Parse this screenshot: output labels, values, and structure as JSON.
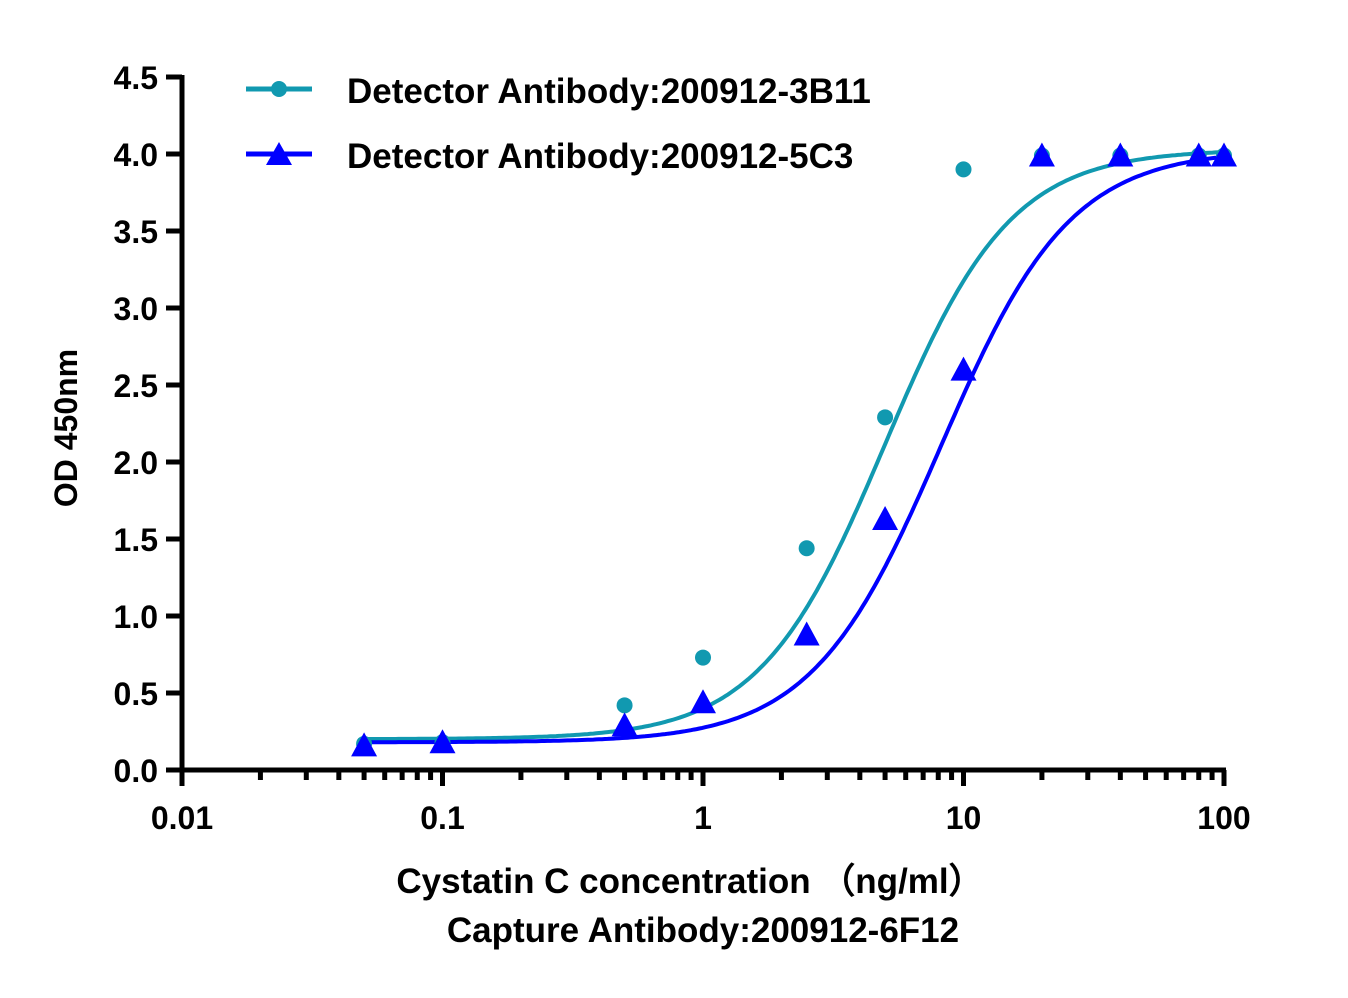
{
  "chart_data": {
    "type": "scatter",
    "x_scale": "log",
    "xlim": [
      0.01,
      100
    ],
    "ylim": [
      0,
      4.5
    ],
    "x_ticks": [
      "0.01",
      "0.1",
      "1",
      "10",
      "100"
    ],
    "y_ticks": [
      "0.0",
      "0.5",
      "1.0",
      "1.5",
      "2.0",
      "2.5",
      "3.0",
      "3.5",
      "4.0",
      "4.5"
    ],
    "xlabel": "Cystatin C concentration （ng/ml）",
    "xlabel2": "Capture Antibody:200912-6F12",
    "ylabel": "OD 450nm",
    "grid": false,
    "legend_position": "top-left",
    "series": [
      {
        "name": "Detector Antibody:200912-3B11",
        "marker": "circle",
        "color": "#1199b0",
        "x": [
          0.05,
          0.1,
          0.5,
          1,
          2.5,
          5,
          10,
          20,
          40,
          80,
          100
        ],
        "y": [
          0.17,
          0.18,
          0.42,
          0.73,
          1.44,
          2.29,
          3.9,
          3.99,
          3.99,
          3.99,
          3.99
        ],
        "fit": {
          "bottom": 0.2,
          "top": 4.03,
          "ec50": 5.0,
          "hill": 1.8
        }
      },
      {
        "name": "Detector Antibody:200912-5C3",
        "marker": "triangle",
        "color": "#0000ff",
        "x": [
          0.05,
          0.1,
          0.5,
          1,
          2.5,
          5,
          10,
          20,
          40,
          80,
          100
        ],
        "y": [
          0.16,
          0.18,
          0.29,
          0.44,
          0.88,
          1.63,
          2.6,
          3.99,
          3.99,
          3.99,
          3.99
        ],
        "fit": {
          "bottom": 0.18,
          "top": 4.03,
          "ec50": 8.2,
          "hill": 1.75
        }
      }
    ]
  }
}
